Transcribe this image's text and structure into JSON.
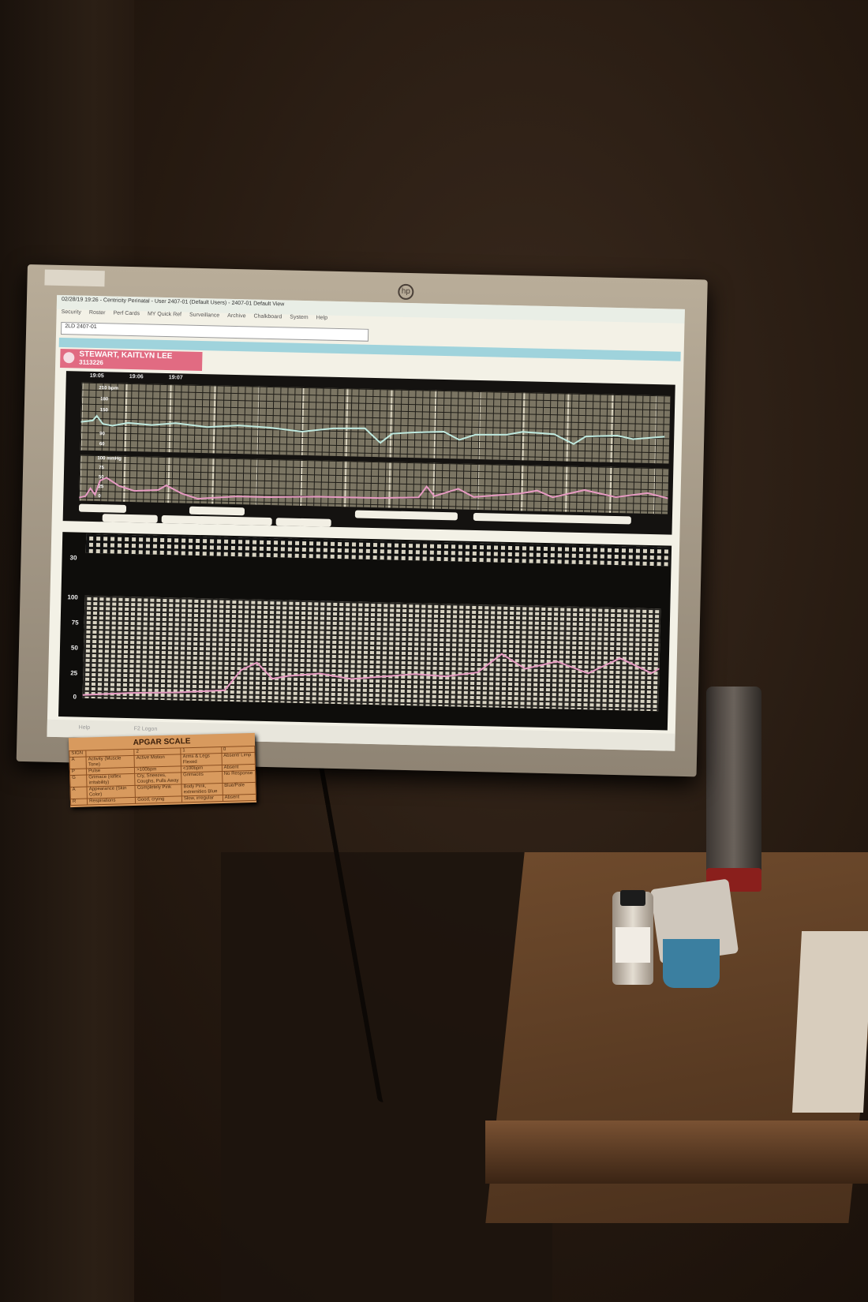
{
  "monitor": {
    "brand_logo": "hp",
    "window_title": "02/28/19 19:26 - Centricity Perinatal - User 2407-01 (Default Users) - 2407-01 Default View",
    "menu": [
      "Security",
      "Roster",
      "Perf Cards",
      "MY Quick Ref",
      "Surveillance",
      "Archive",
      "Chalkboard",
      "System",
      "Help"
    ],
    "address_value": "2LD 2407-01",
    "patient": {
      "name": "STEWART, KAITLYN LEE",
      "mrn": "3113226"
    },
    "time_ticks": [
      "19:05",
      "19:06",
      "19:07"
    ],
    "fhr_axis": {
      "unit_label": "210 bpm",
      "ticks": [
        "180",
        "150",
        "90",
        "60"
      ]
    },
    "toco_axis": {
      "unit_label": "100 mmHg",
      "ticks": [
        "75",
        "50",
        "25",
        "0"
      ]
    },
    "lower_axis": {
      "top_label": "30",
      "ticks": [
        "100",
        "75",
        "50",
        "25",
        "0"
      ]
    },
    "taskbar_items": [
      "Help",
      "F2 Logon"
    ],
    "colors": {
      "patient_banner": "#e16b82",
      "fhr_trace": "#bfe9df",
      "toco_trace": "#e79bc3",
      "header_bar": "#9fd3dc"
    }
  },
  "apgar_card": {
    "title": "APGAR SCALE",
    "header": [
      "SIGN",
      "",
      "2",
      "1",
      "0"
    ],
    "rows": [
      [
        "A",
        "Activity (Muscle Tone)",
        "Active Motion",
        "Arms & Legs Flexed",
        "Absent/ Limp"
      ],
      [
        "P",
        "Pulse",
        ">100bpm",
        "<100bpm",
        "Absent"
      ],
      [
        "G",
        "Grimace (reflex irritability)",
        "Cry, Sneezes, Coughs, Pulls Away",
        "Grimaces",
        "No Response"
      ],
      [
        "A",
        "Appearance (Skin Color)",
        "Completely Pink",
        "Body Pink, extremities Blue",
        "Blue/Pale"
      ],
      [
        "R",
        "Respirations",
        "Good, crying",
        "Slow, irregular",
        "Absent"
      ]
    ]
  }
}
